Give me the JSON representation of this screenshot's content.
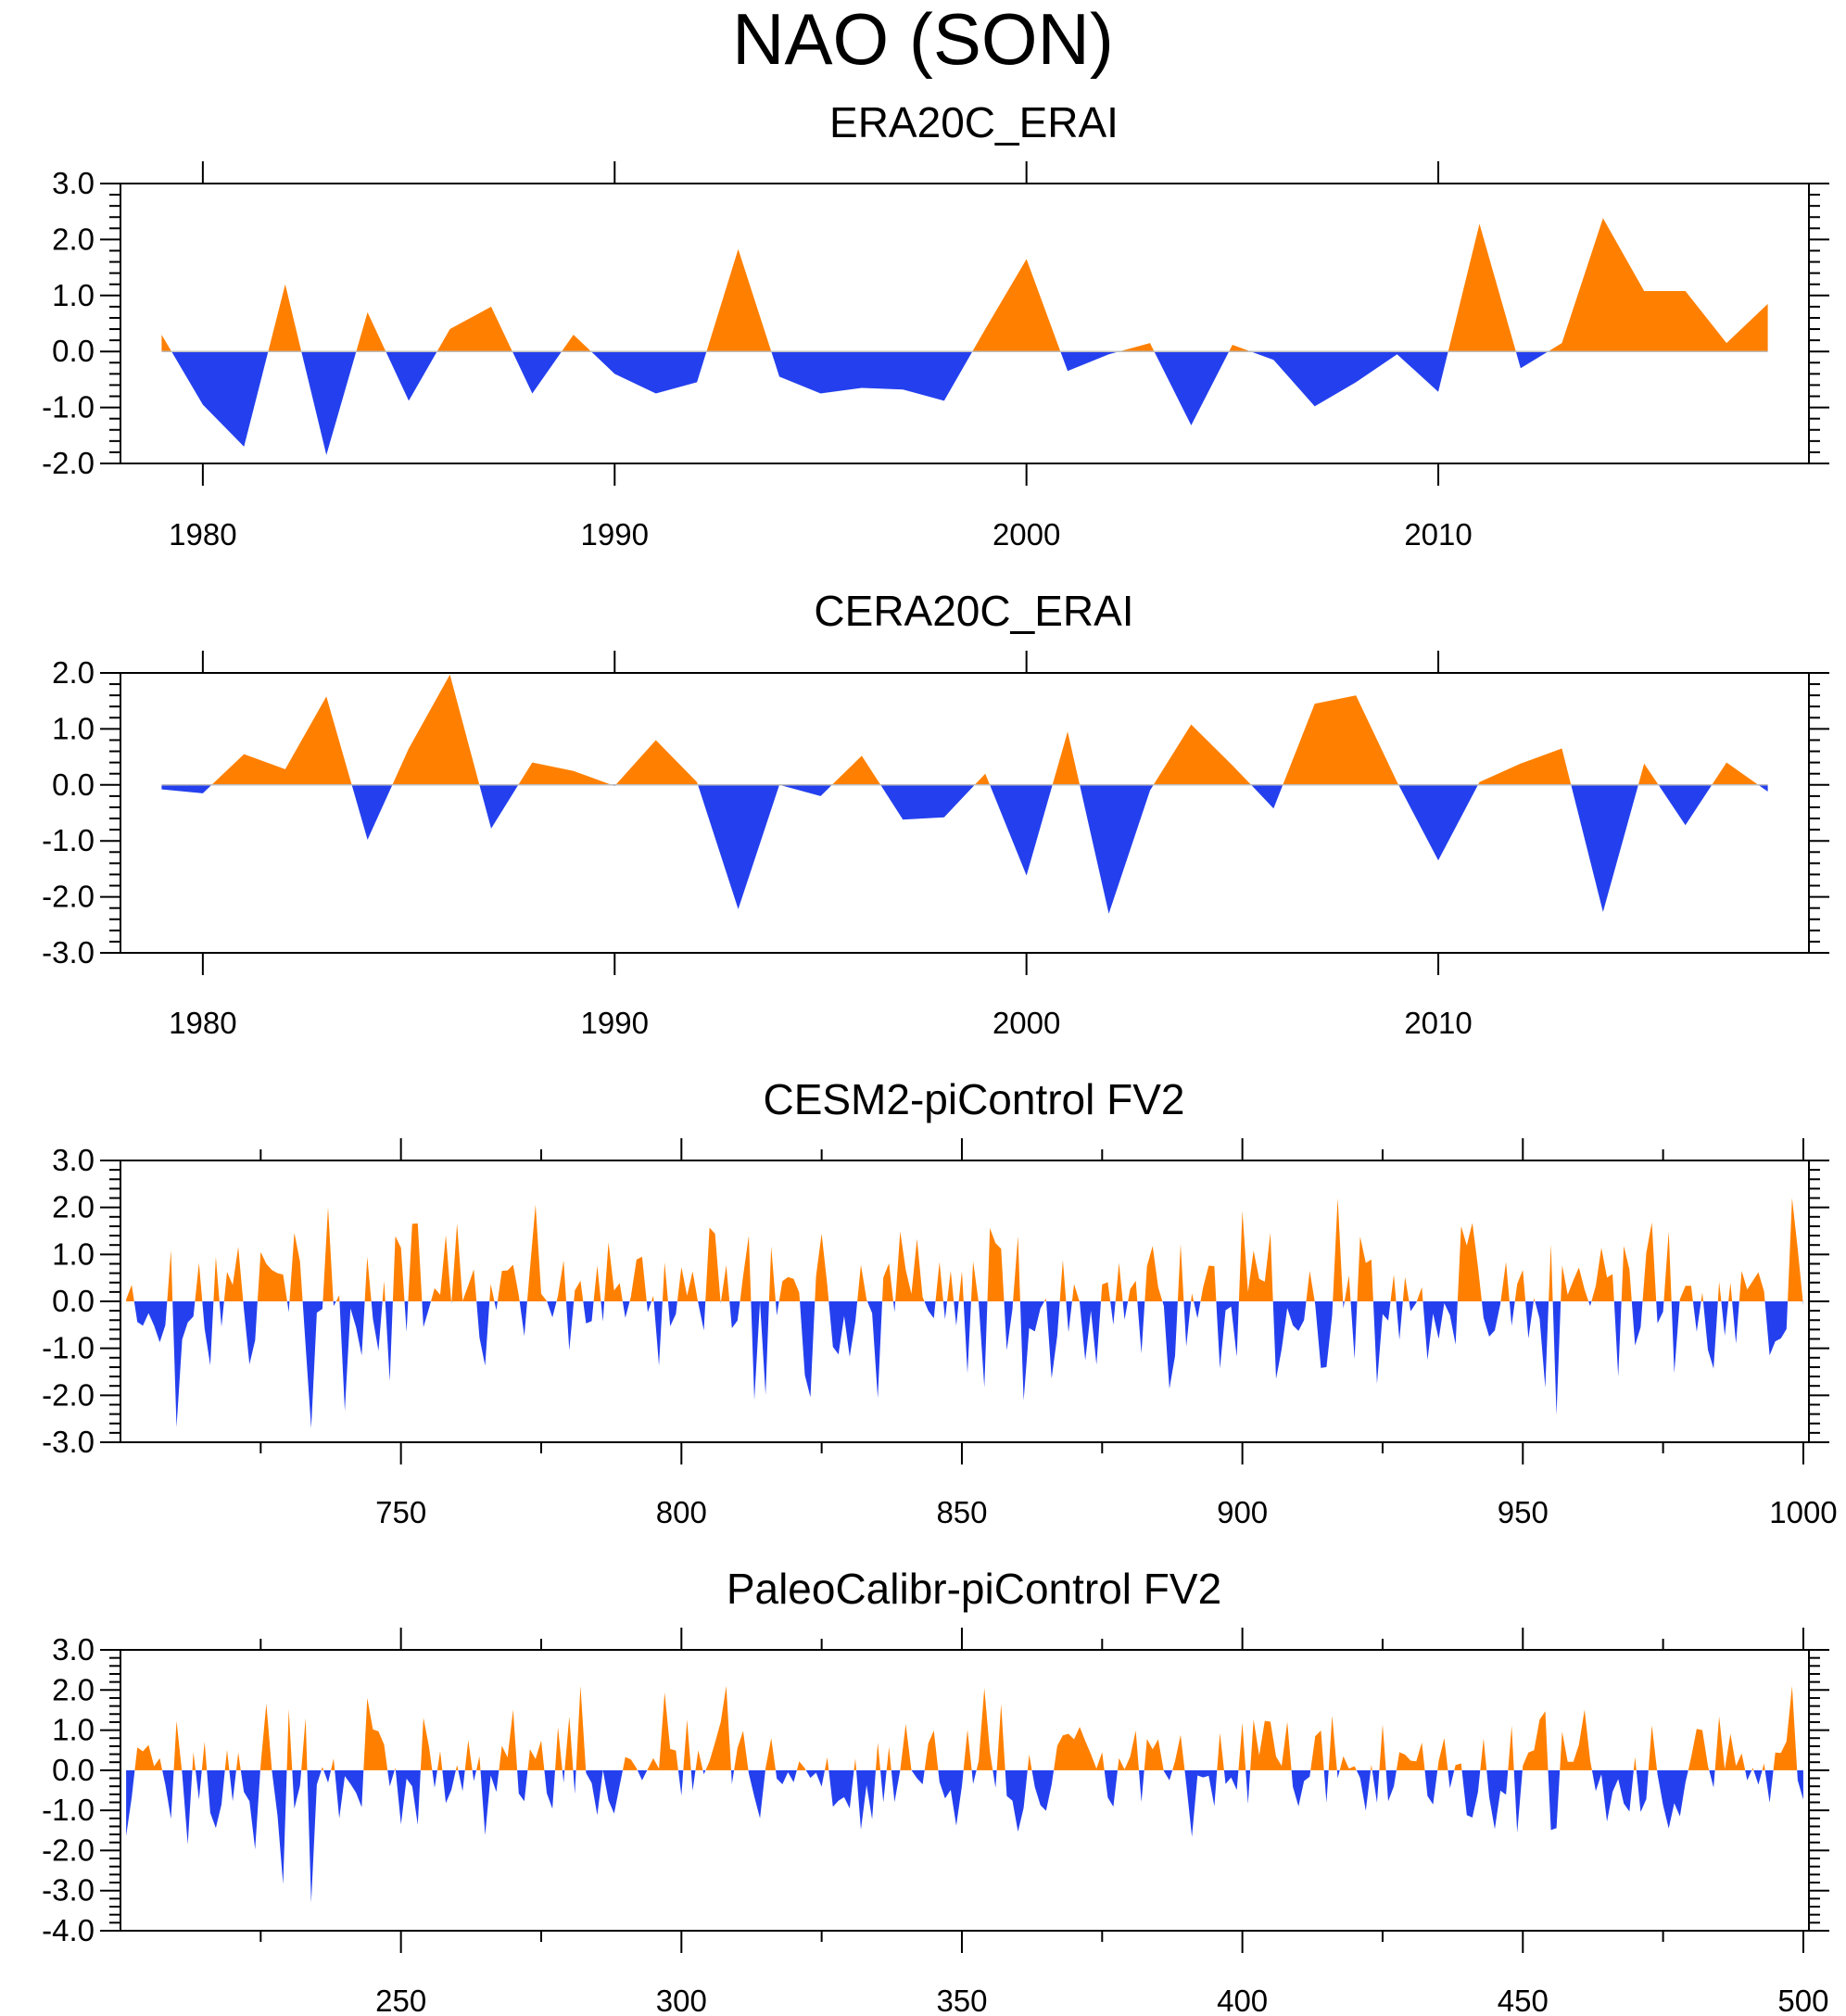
{
  "title": "NAO (SON)",
  "colors": {
    "positive": "#ff8000",
    "negative": "#2440ee",
    "axis": "#000000",
    "zero": "#bdbdbd"
  },
  "chart_data": [
    {
      "type": "area",
      "title": "ERA20C_ERAI",
      "ylim": [
        -2.0,
        3.0
      ],
      "yticks": [
        3.0,
        2.0,
        1.0,
        0.0,
        -1.0,
        -2.0
      ],
      "ytick_labels": [
        "3.0",
        "2.0",
        "1.0",
        "0.0",
        "-1.0",
        "-2.0"
      ],
      "xlim": [
        1978,
        2019
      ],
      "xticks": [
        1980,
        1990,
        2000,
        2010
      ],
      "xtick_labels": [
        "1980",
        "1990",
        "2000",
        "2010"
      ],
      "x_start": 1979,
      "values": [
        0.3,
        -0.95,
        -1.7,
        1.2,
        -1.85,
        0.7,
        -0.88,
        0.4,
        0.8,
        -0.75,
        0.3,
        -0.4,
        -0.75,
        -0.55,
        1.83,
        -0.45,
        -0.75,
        -0.65,
        -0.68,
        -0.88,
        0.4,
        1.65,
        -0.35,
        -0.05,
        0.15,
        -1.32,
        0.12,
        -0.15,
        -0.98,
        -0.55,
        -0.05,
        -0.72,
        2.28,
        -0.3,
        0.15,
        2.38,
        1.08,
        1.08,
        0.15,
        0.85
      ]
    },
    {
      "type": "area",
      "title": "CERA20C_ERAI",
      "ylim": [
        -3.0,
        2.0
      ],
      "yticks": [
        2.0,
        1.0,
        0.0,
        -1.0,
        -2.0,
        -3.0
      ],
      "ytick_labels": [
        "2.0",
        "1.0",
        "0.0",
        "-1.0",
        "-2.0",
        "-3.0"
      ],
      "xlim": [
        1978,
        2019
      ],
      "xticks": [
        1980,
        1990,
        2000,
        2010
      ],
      "xtick_labels": [
        "1980",
        "1990",
        "2000",
        "2010"
      ],
      "x_start": 1979,
      "values": [
        -0.08,
        -0.15,
        0.55,
        0.28,
        1.58,
        -0.98,
        0.65,
        1.97,
        -0.78,
        0.4,
        0.25,
        -0.02,
        0.8,
        0.05,
        -2.22,
        0.0,
        -0.2,
        0.52,
        -0.62,
        -0.58,
        0.2,
        -1.62,
        0.95,
        -2.3,
        -0.1,
        1.08,
        0.35,
        -0.42,
        1.45,
        1.6,
        0.05,
        -1.35,
        0.05,
        0.38,
        0.65,
        -2.27,
        0.38,
        -0.72,
        0.4,
        -0.12
      ]
    },
    {
      "type": "area",
      "title": "CESM2-piControl FV2",
      "ylim": [
        -3.0,
        3.0
      ],
      "yticks": [
        3.0,
        2.0,
        1.0,
        0.0,
        -1.0,
        -2.0,
        -3.0
      ],
      "ytick_labels": [
        "3.0",
        "2.0",
        "1.0",
        "0.0",
        "-1.0",
        "-2.0",
        "-3.0"
      ],
      "xlim": [
        700,
        1001
      ],
      "xticks": [
        750,
        800,
        850,
        900,
        950,
        1000
      ],
      "xtick_labels": [
        "750",
        "800",
        "850",
        "900",
        "950",
        "1000"
      ],
      "minor_ticks": [
        725,
        775,
        825,
        875,
        925,
        975
      ],
      "x_start": 701,
      "noise": {
        "seed": 17,
        "count": 300,
        "pos_max": 2.2,
        "neg_min": -2.7
      }
    },
    {
      "type": "area",
      "title": "PaleoCalibr-piControl FV2",
      "ylim": [
        -4.0,
        3.0
      ],
      "yticks": [
        3.0,
        2.0,
        1.0,
        0.0,
        -1.0,
        -2.0,
        -3.0,
        -4.0
      ],
      "ytick_labels": [
        "3.0",
        "2.0",
        "1.0",
        "0.0",
        "-1.0",
        "-2.0",
        "-3.0",
        "-4.0"
      ],
      "xlim": [
        200,
        501
      ],
      "xticks": [
        250,
        300,
        350,
        400,
        450,
        500
      ],
      "xtick_labels": [
        "250",
        "300",
        "350",
        "400",
        "450",
        "500"
      ],
      "minor_ticks": [
        225,
        275,
        325,
        375,
        425,
        475
      ],
      "x_start": 201,
      "noise": {
        "seed": 91,
        "count": 300,
        "pos_max": 2.1,
        "neg_min": -3.3
      }
    }
  ]
}
